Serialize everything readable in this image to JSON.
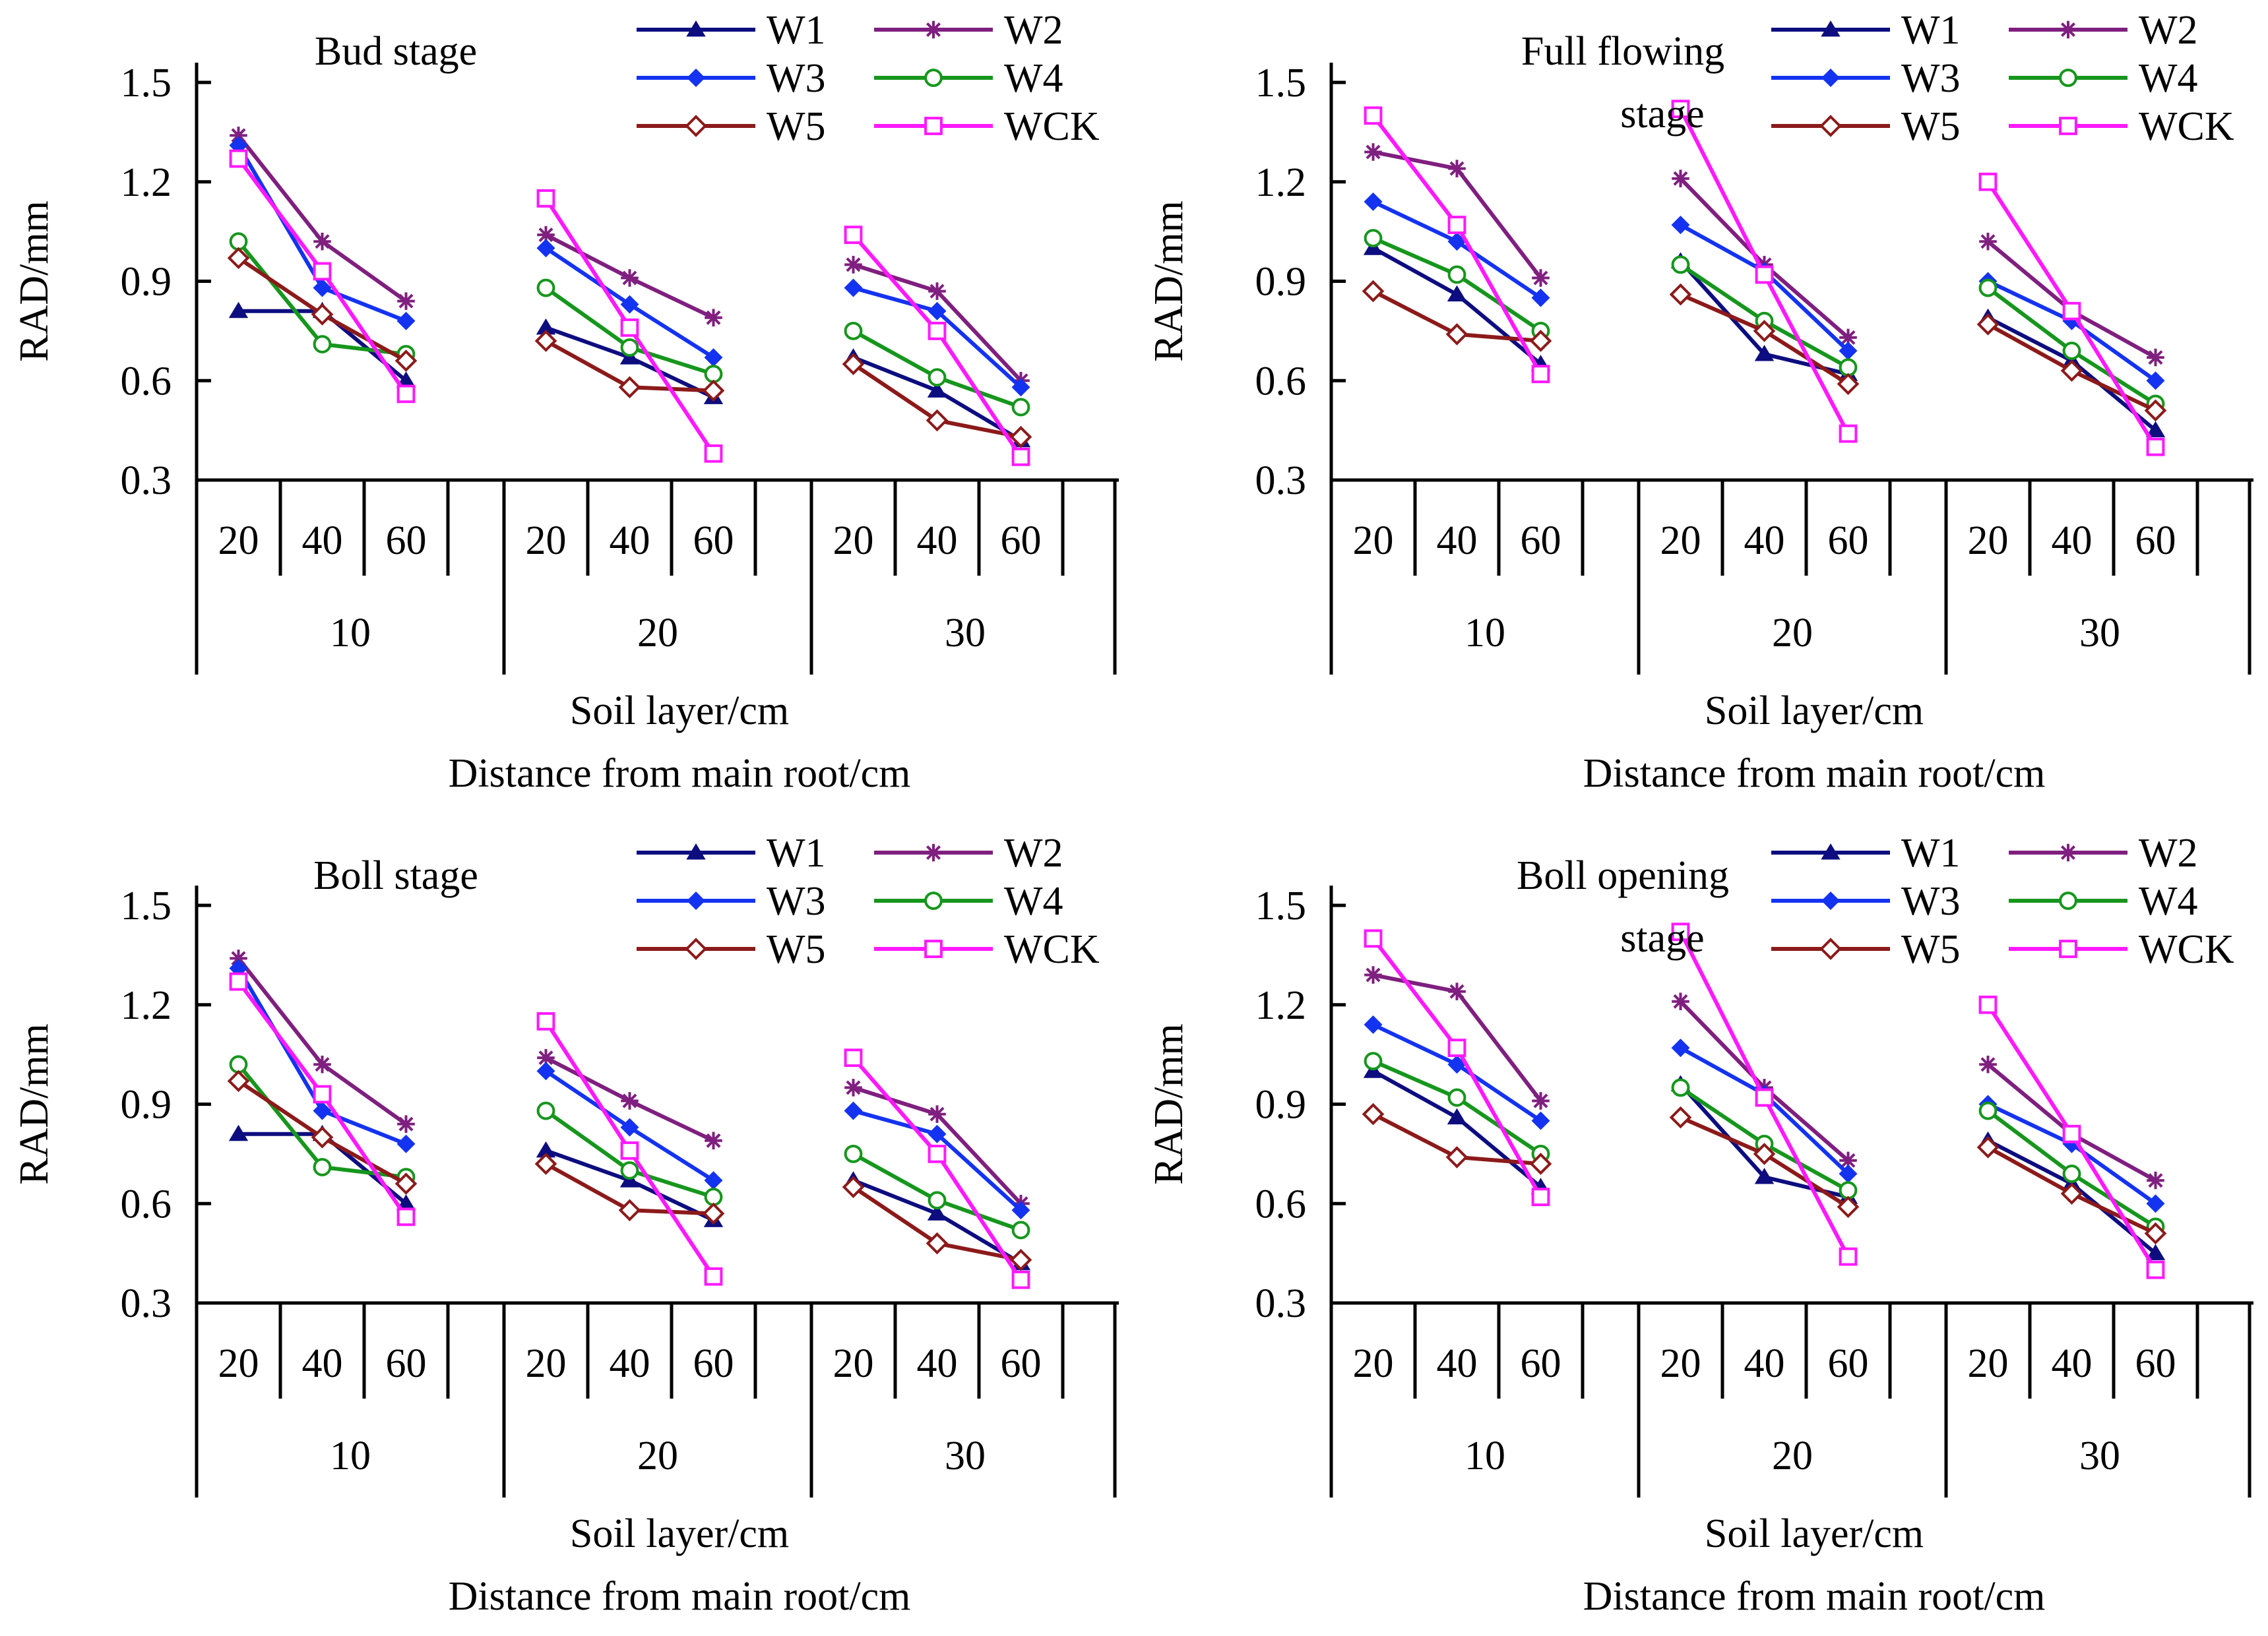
{
  "figure": {
    "series_styles": {
      "W1": {
        "color": "#0d0d80",
        "marker": "triangle"
      },
      "W2": {
        "color": "#7f1f7f",
        "marker": "star"
      },
      "W3": {
        "color": "#1433f0",
        "marker": "diamond"
      },
      "W4": {
        "color": "#16961d",
        "marker": "circle-open"
      },
      "W5": {
        "color": "#8c1a1a",
        "marker": "diamond-open"
      },
      "WCK": {
        "color": "#ff19ff",
        "marker": "square-open"
      }
    }
  },
  "chart_data": [
    {
      "type": "line",
      "title_lines": [
        "Bud stage"
      ],
      "ylabel": "RAD/mm",
      "xlabel_lines": [
        "Soil layer/cm",
        "Distance from main root/cm"
      ],
      "ylim": [
        0.3,
        1.5
      ],
      "yticks": [
        "0.3",
        "0.6",
        "0.9",
        "1.2",
        "1.5"
      ],
      "groups": [
        "10",
        "20",
        "30"
      ],
      "categories": [
        "20",
        "40",
        "60"
      ],
      "series": [
        {
          "name": "W1",
          "values": [
            [
              0.81,
              0.81,
              0.6
            ],
            [
              0.76,
              0.67,
              0.55
            ],
            [
              0.67,
              0.57,
              0.42
            ]
          ]
        },
        {
          "name": "W2",
          "values": [
            [
              1.34,
              1.02,
              0.84
            ],
            [
              1.04,
              0.91,
              0.79
            ],
            [
              0.95,
              0.87,
              0.6
            ]
          ]
        },
        {
          "name": "W3",
          "values": [
            [
              1.31,
              0.88,
              0.78
            ],
            [
              1.0,
              0.83,
              0.67
            ],
            [
              0.88,
              0.81,
              0.58
            ]
          ]
        },
        {
          "name": "W4",
          "values": [
            [
              1.02,
              0.71,
              0.68
            ],
            [
              0.88,
              0.7,
              0.62
            ],
            [
              0.75,
              0.61,
              0.52
            ]
          ]
        },
        {
          "name": "W5",
          "values": [
            [
              0.97,
              0.8,
              0.66
            ],
            [
              0.72,
              0.58,
              0.57
            ],
            [
              0.65,
              0.48,
              0.43
            ]
          ]
        },
        {
          "name": "WCK",
          "values": [
            [
              1.27,
              0.93,
              0.56
            ],
            [
              1.15,
              0.76,
              0.38
            ],
            [
              1.04,
              0.75,
              0.37
            ]
          ]
        }
      ]
    },
    {
      "type": "line",
      "title_lines": [
        "Full flowing",
        "stage"
      ],
      "ylabel": "RAD/mm",
      "xlabel_lines": [
        "Soil layer/cm",
        "Distance from main root/cm"
      ],
      "ylim": [
        0.3,
        1.5
      ],
      "yticks": [
        "0.3",
        "0.6",
        "0.9",
        "1.2",
        "1.5"
      ],
      "groups": [
        "10",
        "20",
        "30"
      ],
      "categories": [
        "20",
        "40",
        "60"
      ],
      "series": [
        {
          "name": "W1",
          "values": [
            [
              1.0,
              0.86,
              0.65
            ],
            [
              0.96,
              0.68,
              0.62
            ],
            [
              0.79,
              0.66,
              0.45
            ]
          ]
        },
        {
          "name": "W2",
          "values": [
            [
              1.29,
              1.24,
              0.91
            ],
            [
              1.21,
              0.95,
              0.73
            ],
            [
              1.02,
              0.81,
              0.67
            ]
          ]
        },
        {
          "name": "W3",
          "values": [
            [
              1.14,
              1.02,
              0.85
            ],
            [
              1.07,
              0.93,
              0.69
            ],
            [
              0.9,
              0.78,
              0.6
            ]
          ]
        },
        {
          "name": "W4",
          "values": [
            [
              1.03,
              0.92,
              0.75
            ],
            [
              0.95,
              0.78,
              0.64
            ],
            [
              0.88,
              0.69,
              0.53
            ]
          ]
        },
        {
          "name": "W5",
          "values": [
            [
              0.87,
              0.74,
              0.72
            ],
            [
              0.86,
              0.75,
              0.59
            ],
            [
              0.77,
              0.63,
              0.51
            ]
          ]
        },
        {
          "name": "WCK",
          "values": [
            [
              1.4,
              1.07,
              0.62
            ],
            [
              1.42,
              0.92,
              0.44
            ],
            [
              1.2,
              0.81,
              0.4
            ]
          ]
        }
      ]
    },
    {
      "type": "line",
      "title_lines": [
        "Boll stage"
      ],
      "ylabel": "RAD/mm",
      "xlabel_lines": [
        "Soil layer/cm",
        "Distance from main root/cm"
      ],
      "ylim": [
        0.3,
        1.5
      ],
      "yticks": [
        "0.3",
        "0.6",
        "0.9",
        "1.2",
        "1.5"
      ],
      "groups": [
        "10",
        "20",
        "30"
      ],
      "categories": [
        "20",
        "40",
        "60"
      ],
      "series": [
        {
          "name": "W1",
          "values": [
            [
              0.81,
              0.81,
              0.6
            ],
            [
              0.76,
              0.67,
              0.55
            ],
            [
              0.67,
              0.57,
              0.42
            ]
          ]
        },
        {
          "name": "W2",
          "values": [
            [
              1.34,
              1.02,
              0.84
            ],
            [
              1.04,
              0.91,
              0.79
            ],
            [
              0.95,
              0.87,
              0.6
            ]
          ]
        },
        {
          "name": "W3",
          "values": [
            [
              1.31,
              0.88,
              0.78
            ],
            [
              1.0,
              0.83,
              0.67
            ],
            [
              0.88,
              0.81,
              0.58
            ]
          ]
        },
        {
          "name": "W4",
          "values": [
            [
              1.02,
              0.71,
              0.68
            ],
            [
              0.88,
              0.7,
              0.62
            ],
            [
              0.75,
              0.61,
              0.52
            ]
          ]
        },
        {
          "name": "W5",
          "values": [
            [
              0.97,
              0.8,
              0.66
            ],
            [
              0.72,
              0.58,
              0.57
            ],
            [
              0.65,
              0.48,
              0.43
            ]
          ]
        },
        {
          "name": "WCK",
          "values": [
            [
              1.27,
              0.93,
              0.56
            ],
            [
              1.15,
              0.76,
              0.38
            ],
            [
              1.04,
              0.75,
              0.37
            ]
          ]
        }
      ]
    },
    {
      "type": "line",
      "title_lines": [
        "Boll opening",
        "stage"
      ],
      "ylabel": "RAD/mm",
      "xlabel_lines": [
        "Soil layer/cm",
        "Distance from main root/cm"
      ],
      "ylim": [
        0.3,
        1.5
      ],
      "yticks": [
        "0.3",
        "0.6",
        "0.9",
        "1.2",
        "1.5"
      ],
      "groups": [
        "10",
        "20",
        "30"
      ],
      "categories": [
        "20",
        "40",
        "60"
      ],
      "series": [
        {
          "name": "W1",
          "values": [
            [
              1.0,
              0.86,
              0.65
            ],
            [
              0.96,
              0.68,
              0.62
            ],
            [
              0.79,
              0.66,
              0.45
            ]
          ]
        },
        {
          "name": "W2",
          "values": [
            [
              1.29,
              1.24,
              0.91
            ],
            [
              1.21,
              0.95,
              0.73
            ],
            [
              1.02,
              0.81,
              0.67
            ]
          ]
        },
        {
          "name": "W3",
          "values": [
            [
              1.14,
              1.02,
              0.85
            ],
            [
              1.07,
              0.93,
              0.69
            ],
            [
              0.9,
              0.78,
              0.6
            ]
          ]
        },
        {
          "name": "W4",
          "values": [
            [
              1.03,
              0.92,
              0.75
            ],
            [
              0.95,
              0.78,
              0.64
            ],
            [
              0.88,
              0.69,
              0.53
            ]
          ]
        },
        {
          "name": "W5",
          "values": [
            [
              0.87,
              0.74,
              0.72
            ],
            [
              0.86,
              0.75,
              0.59
            ],
            [
              0.77,
              0.63,
              0.51
            ]
          ]
        },
        {
          "name": "WCK",
          "values": [
            [
              1.4,
              1.07,
              0.62
            ],
            [
              1.42,
              0.92,
              0.44
            ],
            [
              1.2,
              0.81,
              0.4
            ]
          ]
        }
      ]
    }
  ]
}
